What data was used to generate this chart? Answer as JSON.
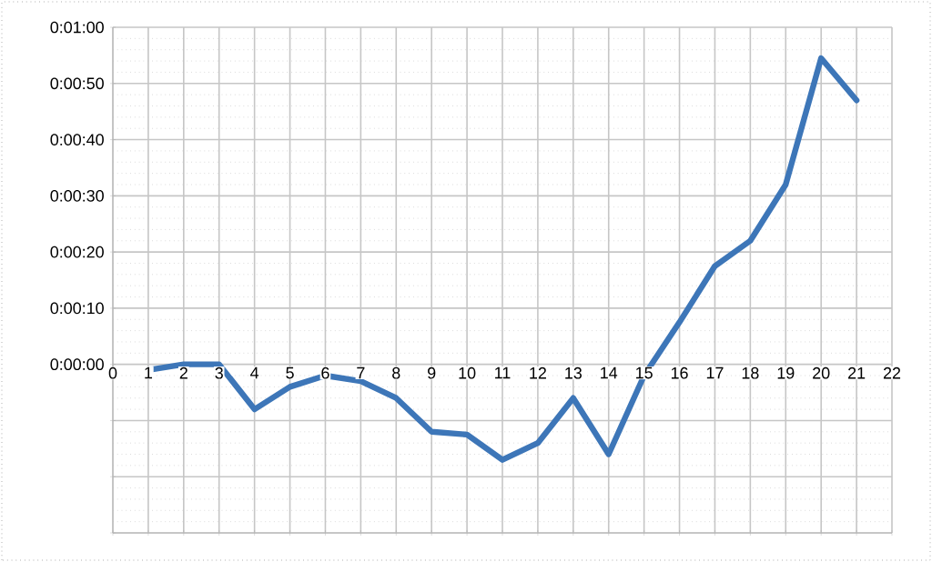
{
  "chart_data": {
    "type": "line",
    "x": [
      1,
      2,
      3,
      4,
      5,
      6,
      7,
      8,
      9,
      10,
      11,
      12,
      13,
      14,
      15,
      16,
      17,
      18,
      19,
      20,
      21
    ],
    "series": [
      {
        "color": "#3d76b8",
        "values": [
          -1,
          0,
          0,
          -8,
          -4,
          -2,
          -3,
          -6,
          -12,
          -12.5,
          -17,
          -14,
          -6,
          -16,
          -2,
          7.5,
          17.5,
          22,
          32,
          54.5,
          47
        ]
      }
    ],
    "xlim": [
      0,
      22
    ],
    "xticks": [
      0,
      1,
      2,
      3,
      4,
      5,
      6,
      7,
      8,
      9,
      10,
      11,
      12,
      13,
      14,
      15,
      16,
      17,
      18,
      19,
      20,
      21,
      22
    ],
    "ylim": [
      -30,
      60
    ],
    "yticks": [
      {
        "value": -30,
        "label": null
      },
      {
        "value": -20,
        "label": null
      },
      {
        "value": -10,
        "label": null
      },
      {
        "value": 0,
        "label": "0:00:00"
      },
      {
        "value": 10,
        "label": "0:00:10"
      },
      {
        "value": 20,
        "label": "0:00:20"
      },
      {
        "value": 30,
        "label": "0:00:30"
      },
      {
        "value": 40,
        "label": "0:00:40"
      },
      {
        "value": 50,
        "label": "0:00:50"
      },
      {
        "value": 60,
        "label": "0:01:00"
      }
    ],
    "grid": true,
    "marker": "none",
    "line_style": "solid"
  }
}
